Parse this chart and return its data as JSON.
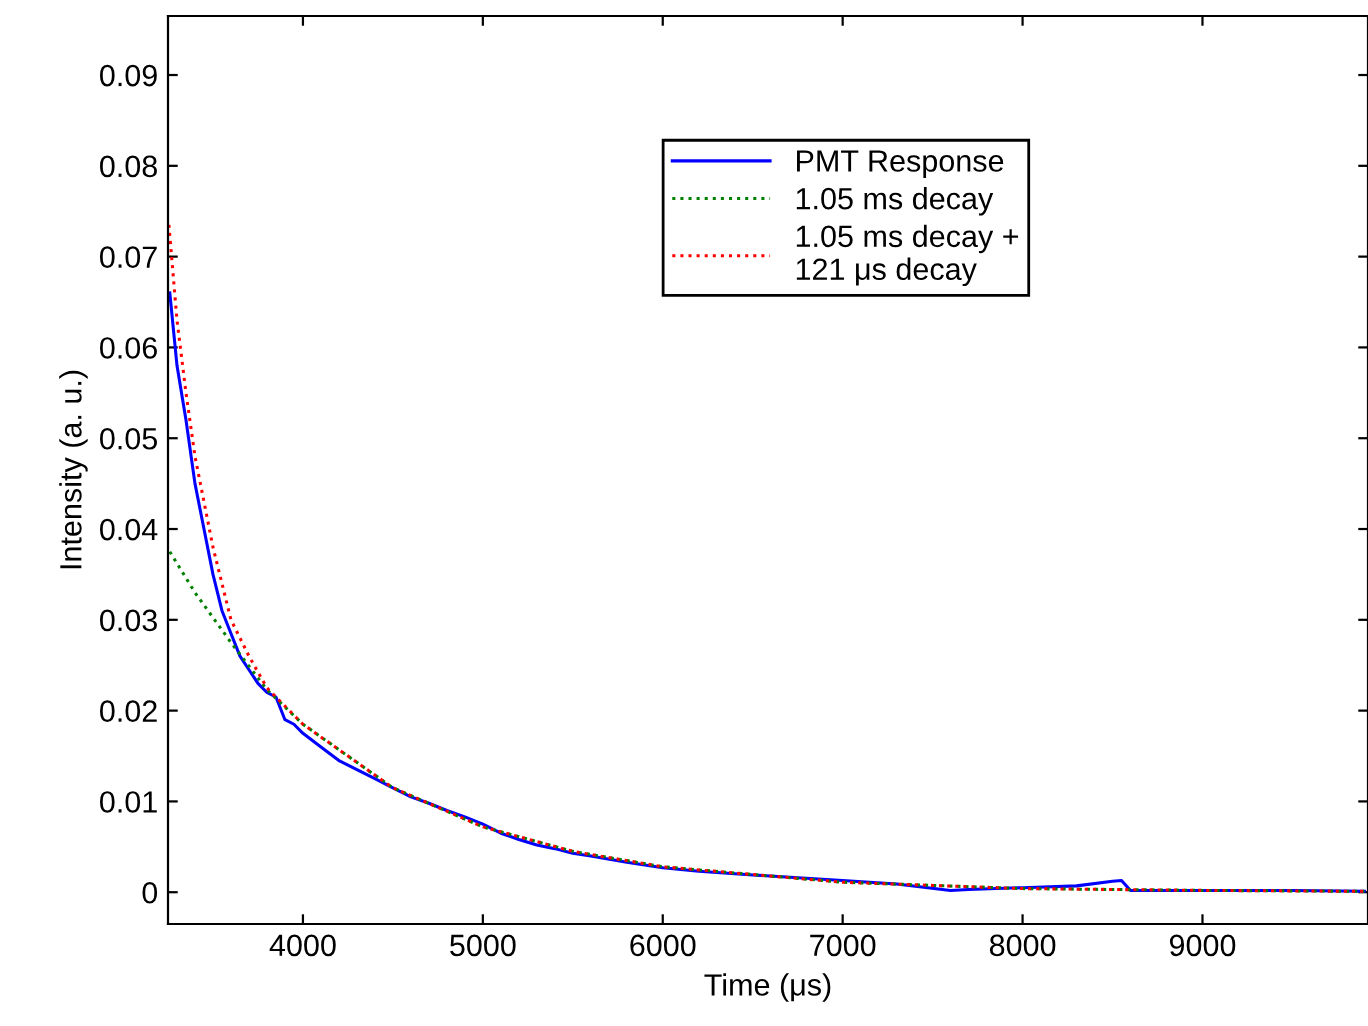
{
  "chart_data": {
    "type": "line",
    "xlabel": "Time (μs)",
    "ylabel": "Intensity (a. u.)",
    "xlim": [
      3250,
      9920
    ],
    "ylim": [
      -0.0035,
      0.0965
    ],
    "xticks": [
      4000,
      5000,
      6000,
      7000,
      8000,
      9000
    ],
    "yticks": [
      0,
      0.01,
      0.02,
      0.03,
      0.04,
      0.05,
      0.06,
      0.07,
      0.08,
      0.09
    ],
    "grid": false,
    "legend": "top right",
    "series": [
      {
        "name": "PMT Response",
        "color": "#0000ff",
        "line_style": "solid",
        "x": [
          3260,
          3300,
          3350,
          3400,
          3450,
          3500,
          3550,
          3600,
          3650,
          3700,
          3750,
          3800,
          3850,
          3900,
          3950,
          4000,
          4100,
          4200,
          4300,
          4400,
          4500,
          4600,
          4700,
          4800,
          4900,
          5000,
          5100,
          5200,
          5300,
          5400,
          5500,
          5600,
          5800,
          6000,
          6200,
          6500,
          7000,
          7300,
          7600,
          7700,
          8000,
          8300,
          8500,
          8550,
          8600,
          9000,
          9500,
          9900
        ],
        "values": [
          0.066,
          0.058,
          0.052,
          0.045,
          0.04,
          0.035,
          0.031,
          0.0285,
          0.026,
          0.0245,
          0.023,
          0.022,
          0.0215,
          0.019,
          0.0185,
          0.0175,
          0.016,
          0.0145,
          0.0135,
          0.0125,
          0.0115,
          0.0105,
          0.0098,
          0.009,
          0.0083,
          0.0075,
          0.0065,
          0.0058,
          0.0052,
          0.0048,
          0.0043,
          0.004,
          0.0033,
          0.0027,
          0.0023,
          0.0019,
          0.0013,
          0.0009,
          0.0002,
          0.0003,
          0.0005,
          0.0007,
          0.0012,
          0.0013,
          0.0002,
          0.0002,
          0.0002,
          0.0001
        ]
      },
      {
        "name": "1.05 ms decay",
        "color": "#008000",
        "line_style": "dotted",
        "x": [
          3260,
          3400,
          3600,
          3800,
          4000,
          4500,
          5000,
          5500,
          6000,
          7000,
          8000,
          9000,
          9900
        ],
        "values": [
          0.0375,
          0.033,
          0.0275,
          0.0223,
          0.0185,
          0.0115,
          0.0072,
          0.0045,
          0.0028,
          0.0011,
          0.0004,
          0.0002,
          0.0001
        ]
      },
      {
        "name": "1.05 ms decay +\n121 μs decay",
        "color": "#ff0000",
        "line_style": "dotted",
        "x": [
          3255,
          3300,
          3350,
          3400,
          3500,
          3600,
          3700,
          3800,
          4000,
          4500,
          5000,
          5500,
          6000,
          7000,
          8000,
          9000,
          9900
        ],
        "values": [
          0.0735,
          0.063,
          0.055,
          0.048,
          0.038,
          0.03,
          0.026,
          0.0225,
          0.0185,
          0.0115,
          0.0072,
          0.0045,
          0.0028,
          0.0011,
          0.0004,
          0.0002,
          0.0001
        ]
      }
    ]
  }
}
